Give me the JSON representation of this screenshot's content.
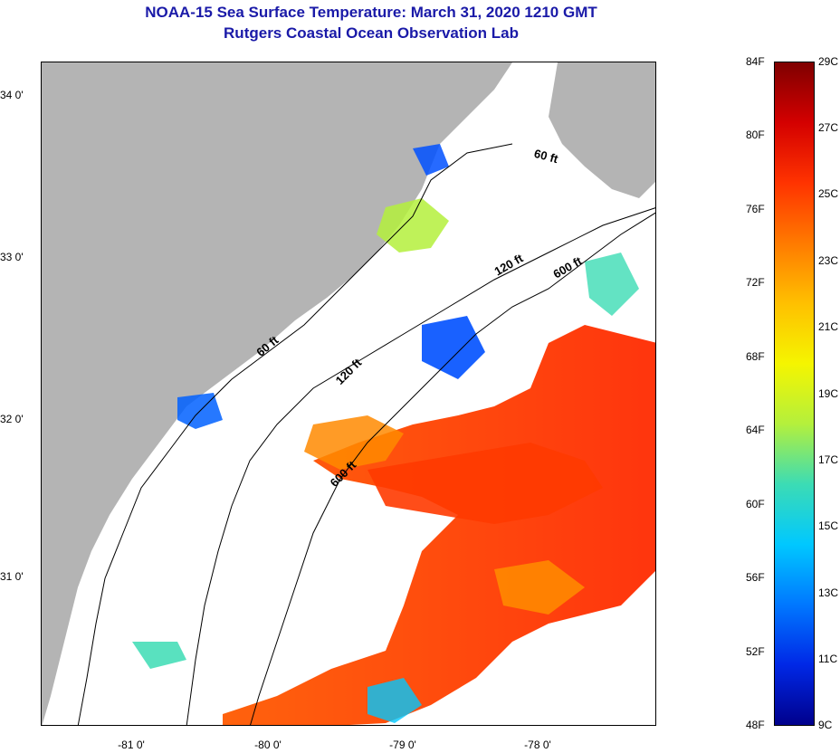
{
  "header": {
    "title": "NOAA-15 Sea Surface Temperature:  March 31, 2020 1210 GMT",
    "subtitle": "Rutgers Coastal Ocean Observation Lab"
  },
  "map": {
    "lat_ticks": [
      "34 0'",
      "33 0'",
      "32 0'",
      "31 0'"
    ],
    "lon_ticks": [
      "-81 0'",
      "-80 0'",
      "-79 0'",
      "-78 0'"
    ],
    "contours": [
      "60 ft",
      "60 ft",
      "120 ft",
      "120 ft",
      "600 ft",
      "600 ft"
    ],
    "land_color": "#b4b4b4",
    "no_data_color": "#ffffff"
  },
  "colorbar": {
    "fahrenheit": [
      "84F",
      "80F",
      "76F",
      "72F",
      "68F",
      "64F",
      "60F",
      "56F",
      "52F",
      "48F"
    ],
    "celsius": [
      "29C",
      "27C",
      "25C",
      "23C",
      "21C",
      "19C",
      "17C",
      "15C",
      "13C",
      "11C",
      "9C"
    ],
    "colors": [
      "#7f0000",
      "#d40000",
      "#ff3300",
      "#ff7a00",
      "#ffc000",
      "#f5f500",
      "#b4f03c",
      "#3cdcb4",
      "#00c8ff",
      "#0078ff",
      "#0028e6",
      "#00008c"
    ]
  }
}
